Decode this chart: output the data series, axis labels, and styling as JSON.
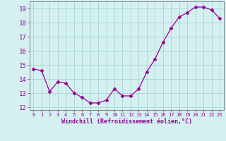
{
  "x": [
    0,
    1,
    2,
    3,
    4,
    5,
    6,
    7,
    8,
    9,
    10,
    11,
    12,
    13,
    14,
    15,
    16,
    17,
    18,
    19,
    20,
    21,
    22,
    23
  ],
  "y": [
    14.7,
    14.6,
    13.1,
    13.8,
    13.7,
    13.0,
    12.7,
    12.3,
    12.3,
    12.5,
    13.3,
    12.8,
    12.8,
    13.3,
    14.5,
    15.4,
    16.6,
    17.6,
    18.4,
    18.7,
    19.1,
    19.1,
    18.9,
    18.3
  ],
  "line_color": "#990099",
  "marker": "D",
  "marker_size": 2.5,
  "bg_color": "#d4f0f0",
  "grid_color": "#b0d8d8",
  "spine_color": "#808080",
  "xlabel": "Windchill (Refroidissement éolien,°C)",
  "xlabel_color": "#990099",
  "tick_color": "#990099",
  "ylim": [
    11.8,
    19.5
  ],
  "yticks": [
    12,
    13,
    14,
    15,
    16,
    17,
    18,
    19
  ],
  "xlim": [
    -0.5,
    23.5
  ],
  "xtick_fontsize": 5.0,
  "ytick_fontsize": 6.5,
  "xlabel_fontsize": 6.0
}
